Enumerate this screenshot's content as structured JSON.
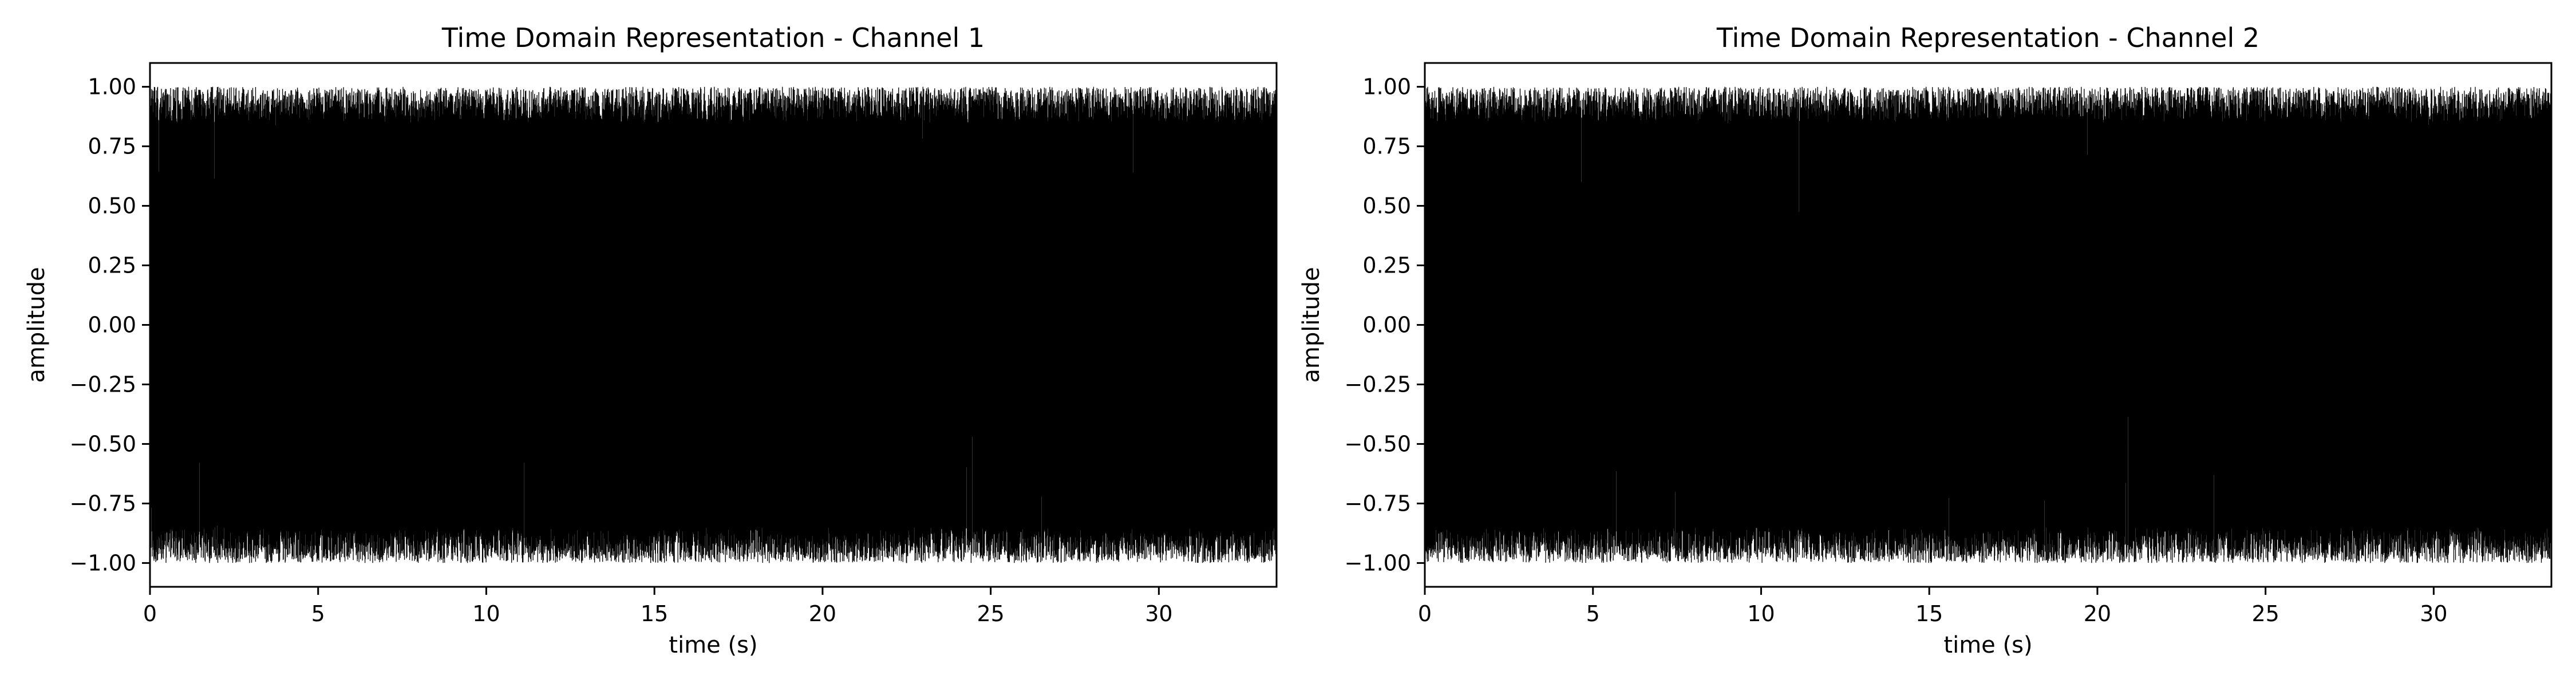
{
  "chart_data": [
    {
      "type": "line",
      "title": "Time Domain Representation - Channel 1",
      "xlabel": "time (s)",
      "ylabel": "amplitude",
      "xlim": [
        0,
        33.5
      ],
      "ylim": [
        -1.1,
        1.1
      ],
      "xticks": [
        0,
        5,
        10,
        15,
        20,
        25,
        30
      ],
      "xtick_labels": [
        "0",
        "5",
        "10",
        "15",
        "20",
        "25",
        "30"
      ],
      "yticks": [
        -1.0,
        -0.75,
        -0.5,
        -0.25,
        0.0,
        0.25,
        0.5,
        0.75,
        1.0
      ],
      "ytick_labels": [
        "−1.00",
        "−0.75",
        "−0.50",
        "−0.25",
        "0.00",
        "0.25",
        "0.50",
        "0.75",
        "1.00"
      ],
      "grid": false,
      "series": [
        {
          "color": "#000000",
          "envelope": {
            "x_range": [
              0,
              33.5
            ],
            "max_amplitude": 1.0,
            "min_amplitude": -1.0,
            "typical_upper_extent": [
              0.85,
              1.0
            ],
            "typical_lower_extent": [
              -1.0,
              -0.85
            ]
          }
        }
      ]
    },
    {
      "type": "line",
      "title": "Time Domain Representation - Channel 2",
      "xlabel": "time (s)",
      "ylabel": "amplitude",
      "xlim": [
        0,
        33.5
      ],
      "ylim": [
        -1.1,
        1.1
      ],
      "xticks": [
        0,
        5,
        10,
        15,
        20,
        25,
        30
      ],
      "xtick_labels": [
        "0",
        "5",
        "10",
        "15",
        "20",
        "25",
        "30"
      ],
      "yticks": [
        -1.0,
        -0.75,
        -0.5,
        -0.25,
        0.0,
        0.25,
        0.5,
        0.75,
        1.0
      ],
      "ytick_labels": [
        "−1.00",
        "−0.75",
        "−0.50",
        "−0.25",
        "0.00",
        "0.25",
        "0.50",
        "0.75",
        "1.00"
      ],
      "grid": false,
      "series": [
        {
          "color": "#000000",
          "envelope": {
            "x_range": [
              0,
              33.5
            ],
            "max_amplitude": 1.0,
            "min_amplitude": -1.0,
            "typical_upper_extent": [
              0.85,
              1.0
            ],
            "typical_lower_extent": [
              -1.0,
              -0.85
            ]
          }
        }
      ]
    }
  ]
}
